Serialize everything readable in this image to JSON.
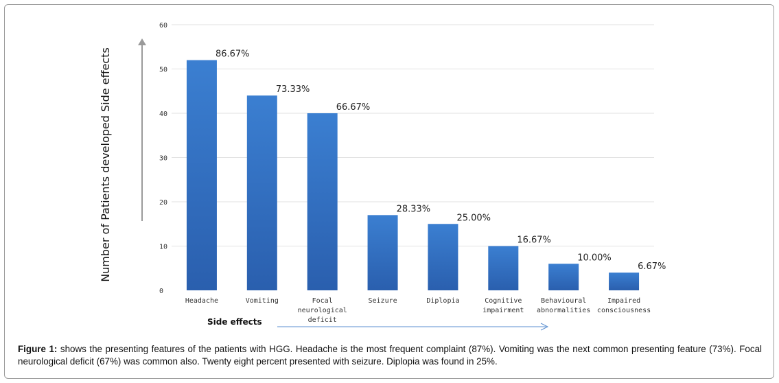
{
  "chart_data": {
    "type": "bar",
    "xlabel": "Side effects",
    "ylabel": "Number of Patients developed Side effects",
    "ylim": [
      0,
      60
    ],
    "yticks": [
      0,
      10,
      20,
      30,
      40,
      50,
      60
    ],
    "grid": true,
    "bar_color": "#3575c4",
    "categories": [
      [
        "Headache"
      ],
      [
        "Vomiting"
      ],
      [
        "Focal",
        "neurological",
        "deficit"
      ],
      [
        "Seizure"
      ],
      [
        "Diplopia"
      ],
      [
        "Cognitive",
        "impairment"
      ],
      [
        "Behavioural",
        "abnormalities"
      ],
      [
        "Impaired",
        "consciousness"
      ]
    ],
    "values": [
      52,
      44,
      40,
      17,
      15,
      10,
      6,
      4
    ],
    "data_labels": [
      "86.67%",
      "73.33%",
      "66.67%",
      "28.33%",
      "25.00%",
      "16.67%",
      "10.00%",
      "6.67%"
    ]
  },
  "caption": {
    "label": "Figure 1:",
    "text": " shows the presenting features of the patients with HGG. Headache is the most frequent complaint (87%). Vomiting was the next common presenting feature (73%). Focal neurological deficit (67%) was common also. Twenty eight percent presented with seizure. Diplopia was found in 25%."
  }
}
